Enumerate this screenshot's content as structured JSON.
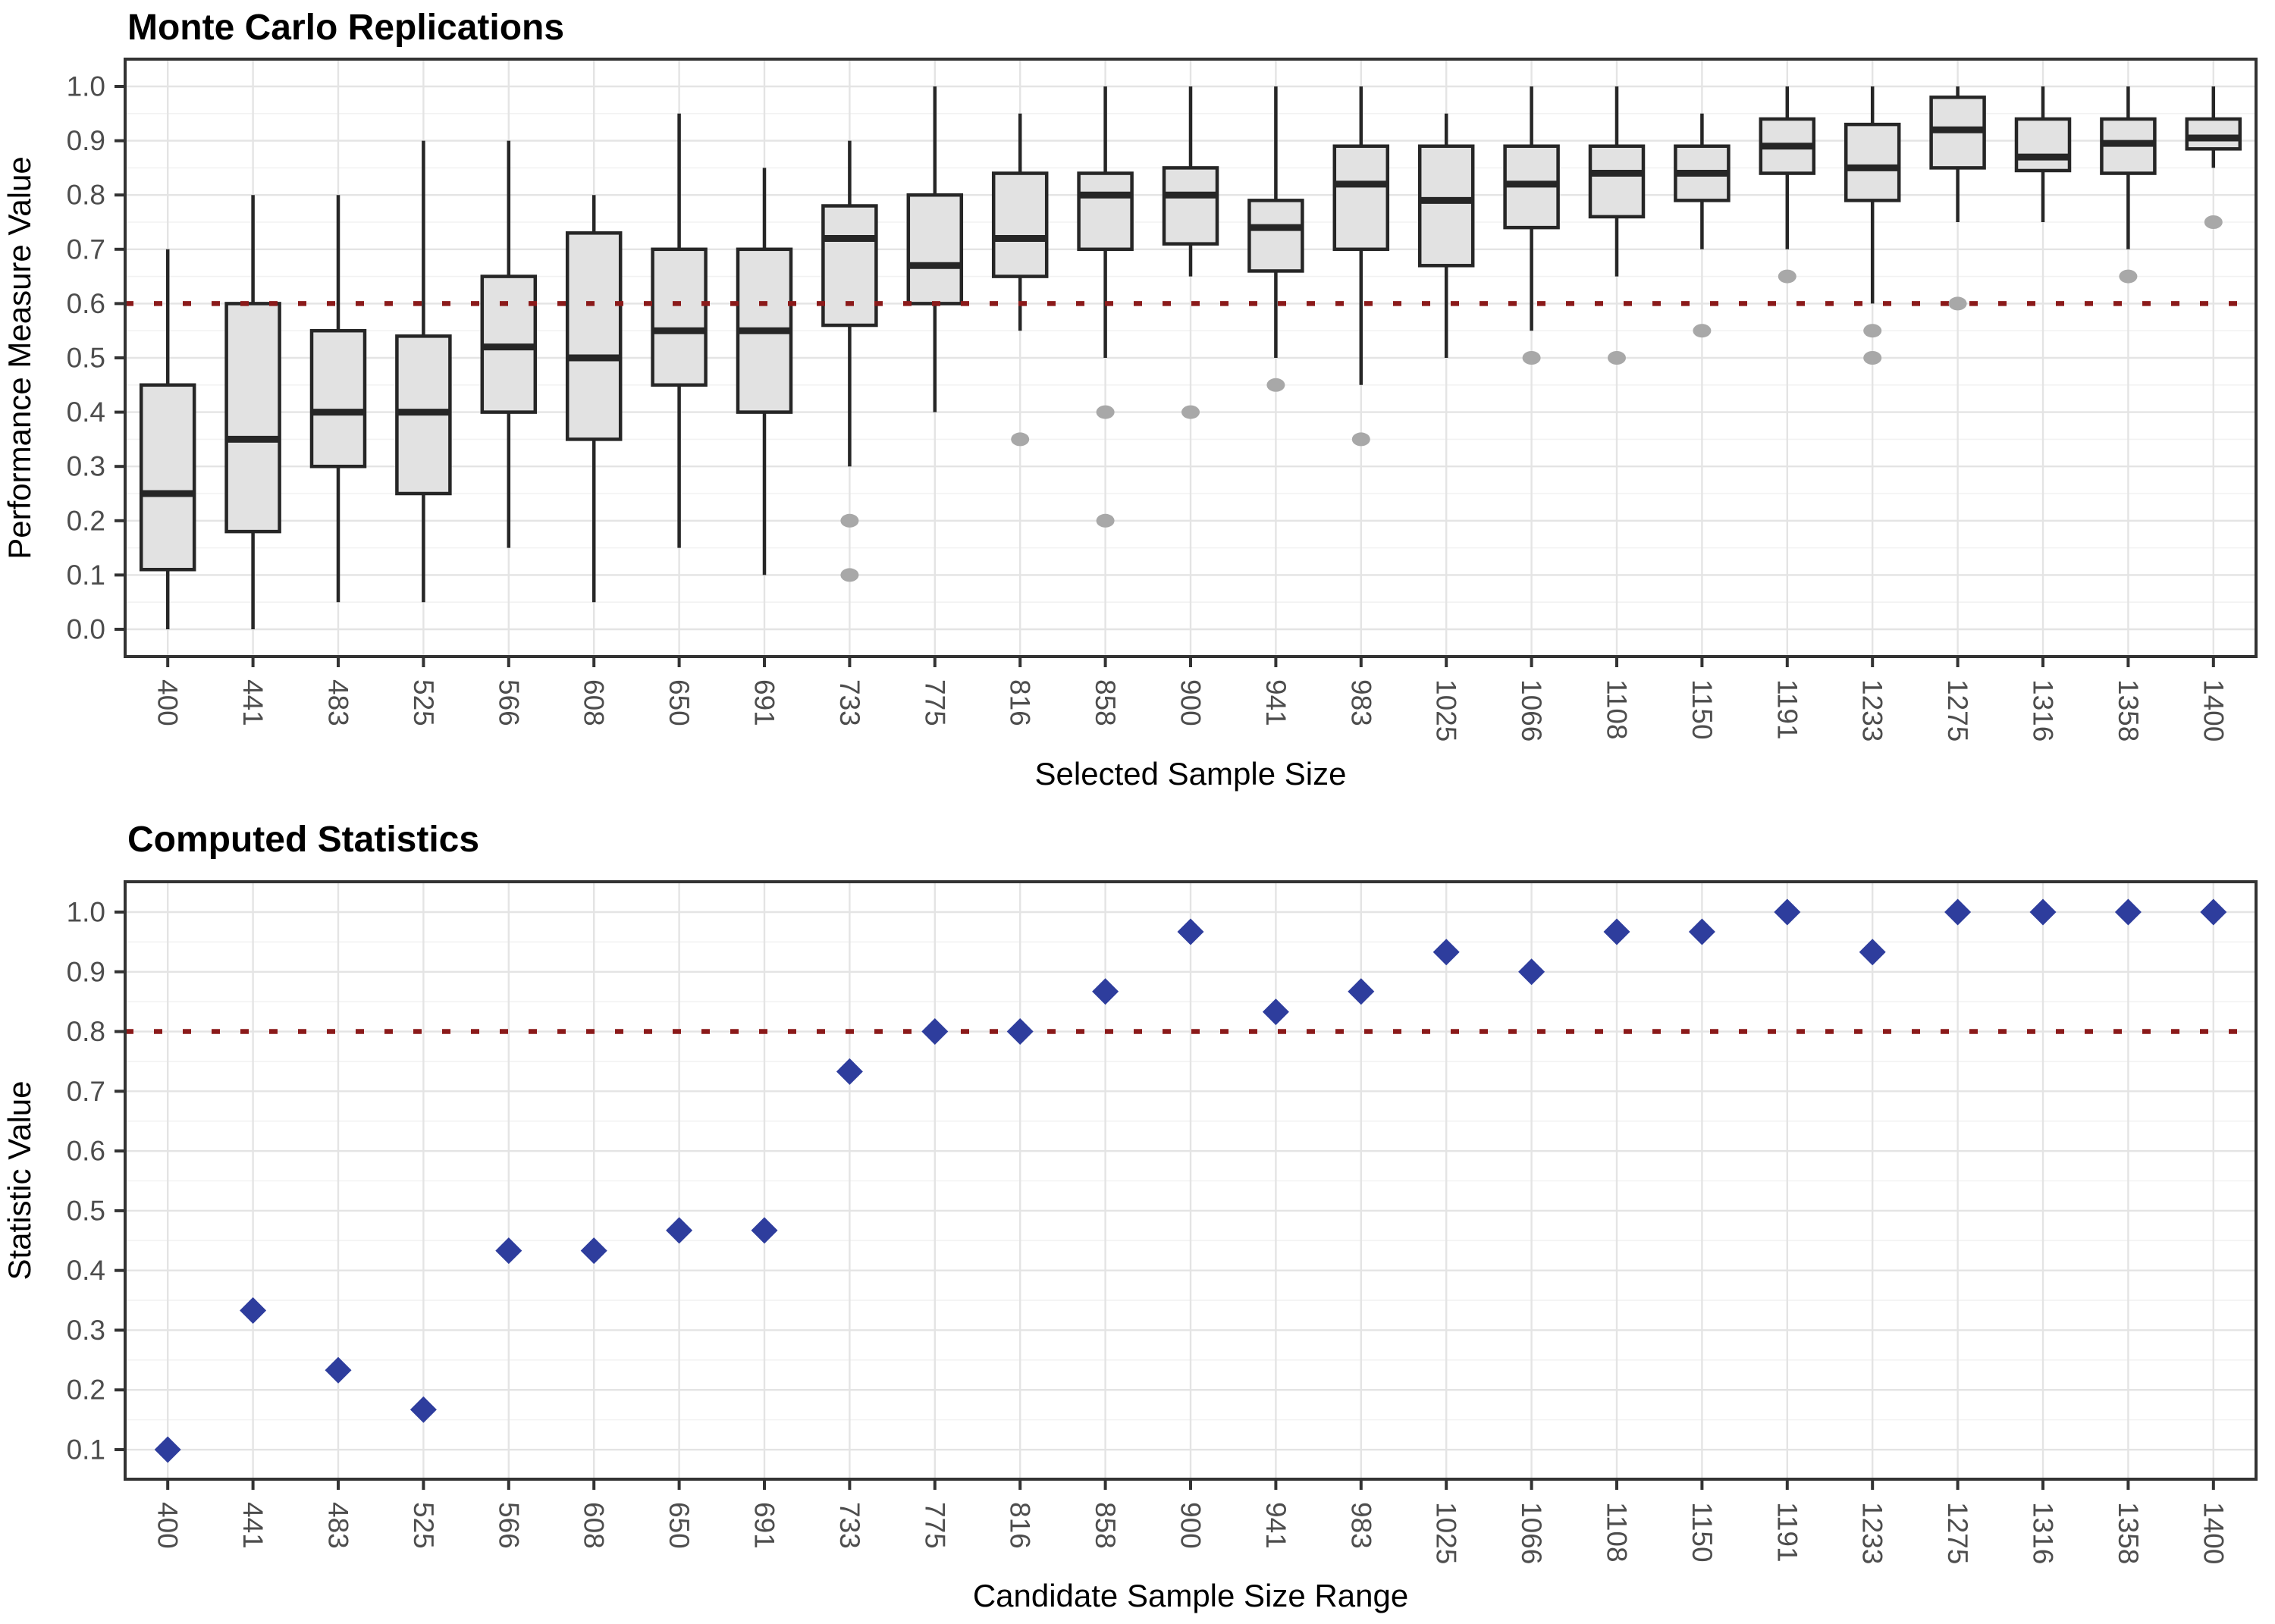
{
  "colors": {
    "box_fill": "#e2e2e2",
    "box_border": "#262626",
    "whisker": "#262626",
    "outlier": "#a8a8a8",
    "point": "#2e3d9d",
    "reference_line": "#8b1a1a",
    "grid_major": "#e4e4e4",
    "grid_minor": "#f2f2f2",
    "panel_border": "#333333",
    "tick_mark": "#333333",
    "tick_label": "#4d4d4d",
    "text": "#000000"
  },
  "chart_data": [
    {
      "type": "boxplot",
      "title": "Monte Carlo Replications",
      "xlabel": "Selected Sample Size",
      "ylabel": "Performance Measure Value",
      "legend": "none",
      "grid": "on",
      "ylim": [
        0.0,
        1.0
      ],
      "y_ticks": [
        0.0,
        0.1,
        0.2,
        0.3,
        0.4,
        0.5,
        0.6,
        0.7,
        0.8,
        0.9,
        1.0
      ],
      "y_tick_labels": [
        "0.0",
        "0.1",
        "0.2",
        "0.3",
        "0.4",
        "0.5",
        "0.6",
        "0.7",
        "0.8",
        "0.9",
        "1.0"
      ],
      "reference_line": {
        "value": 0.6,
        "style": "dotted"
      },
      "categories": [
        "400",
        "441",
        "483",
        "525",
        "566",
        "608",
        "650",
        "691",
        "733",
        "775",
        "816",
        "858",
        "900",
        "941",
        "983",
        "1025",
        "1066",
        "1108",
        "1150",
        "1191",
        "1233",
        "1275",
        "1316",
        "1358",
        "1400"
      ],
      "boxes": [
        {
          "whisker_low": 0.0,
          "q1": 0.11,
          "median": 0.25,
          "q3": 0.45,
          "whisker_high": 0.7,
          "outliers": []
        },
        {
          "whisker_low": 0.0,
          "q1": 0.18,
          "median": 0.35,
          "q3": 0.6,
          "whisker_high": 0.8,
          "outliers": []
        },
        {
          "whisker_low": 0.05,
          "q1": 0.3,
          "median": 0.4,
          "q3": 0.55,
          "whisker_high": 0.8,
          "outliers": []
        },
        {
          "whisker_low": 0.05,
          "q1": 0.25,
          "median": 0.4,
          "q3": 0.54,
          "whisker_high": 0.9,
          "outliers": []
        },
        {
          "whisker_low": 0.15,
          "q1": 0.4,
          "median": 0.52,
          "q3": 0.65,
          "whisker_high": 0.9,
          "outliers": []
        },
        {
          "whisker_low": 0.05,
          "q1": 0.35,
          "median": 0.5,
          "q3": 0.73,
          "whisker_high": 0.8,
          "outliers": []
        },
        {
          "whisker_low": 0.15,
          "q1": 0.45,
          "median": 0.55,
          "q3": 0.7,
          "whisker_high": 0.95,
          "outliers": []
        },
        {
          "whisker_low": 0.1,
          "q1": 0.4,
          "median": 0.55,
          "q3": 0.7,
          "whisker_high": 0.85,
          "outliers": []
        },
        {
          "whisker_low": 0.3,
          "q1": 0.56,
          "median": 0.72,
          "q3": 0.78,
          "whisker_high": 0.9,
          "outliers": [
            0.2,
            0.1
          ]
        },
        {
          "whisker_low": 0.4,
          "q1": 0.6,
          "median": 0.67,
          "q3": 0.8,
          "whisker_high": 1.0,
          "outliers": []
        },
        {
          "whisker_low": 0.55,
          "q1": 0.65,
          "median": 0.72,
          "q3": 0.84,
          "whisker_high": 0.95,
          "outliers": [
            0.35
          ]
        },
        {
          "whisker_low": 0.5,
          "q1": 0.7,
          "median": 0.8,
          "q3": 0.84,
          "whisker_high": 1.0,
          "outliers": [
            0.4,
            0.2
          ]
        },
        {
          "whisker_low": 0.65,
          "q1": 0.71,
          "median": 0.8,
          "q3": 0.85,
          "whisker_high": 1.0,
          "outliers": [
            0.4
          ]
        },
        {
          "whisker_low": 0.5,
          "q1": 0.66,
          "median": 0.74,
          "q3": 0.79,
          "whisker_high": 1.0,
          "outliers": [
            0.45
          ]
        },
        {
          "whisker_low": 0.45,
          "q1": 0.7,
          "median": 0.82,
          "q3": 0.89,
          "whisker_high": 1.0,
          "outliers": [
            0.35
          ]
        },
        {
          "whisker_low": 0.5,
          "q1": 0.67,
          "median": 0.79,
          "q3": 0.89,
          "whisker_high": 0.95,
          "outliers": []
        },
        {
          "whisker_low": 0.55,
          "q1": 0.74,
          "median": 0.82,
          "q3": 0.89,
          "whisker_high": 1.0,
          "outliers": [
            0.5
          ]
        },
        {
          "whisker_low": 0.65,
          "q1": 0.76,
          "median": 0.84,
          "q3": 0.89,
          "whisker_high": 1.0,
          "outliers": [
            0.5
          ]
        },
        {
          "whisker_low": 0.7,
          "q1": 0.79,
          "median": 0.84,
          "q3": 0.89,
          "whisker_high": 0.95,
          "outliers": [
            0.55
          ]
        },
        {
          "whisker_low": 0.7,
          "q1": 0.84,
          "median": 0.89,
          "q3": 0.94,
          "whisker_high": 1.0,
          "outliers": [
            0.65
          ]
        },
        {
          "whisker_low": 0.6,
          "q1": 0.79,
          "median": 0.85,
          "q3": 0.93,
          "whisker_high": 1.0,
          "outliers": [
            0.55,
            0.5
          ]
        },
        {
          "whisker_low": 0.75,
          "q1": 0.85,
          "median": 0.92,
          "q3": 0.98,
          "whisker_high": 1.0,
          "outliers": [
            0.6
          ]
        },
        {
          "whisker_low": 0.75,
          "q1": 0.845,
          "median": 0.87,
          "q3": 0.94,
          "whisker_high": 1.0,
          "outliers": []
        },
        {
          "whisker_low": 0.7,
          "q1": 0.84,
          "median": 0.895,
          "q3": 0.94,
          "whisker_high": 1.0,
          "outliers": [
            0.65
          ]
        },
        {
          "whisker_low": 0.85,
          "q1": 0.885,
          "median": 0.905,
          "q3": 0.94,
          "whisker_high": 1.0,
          "outliers": [
            0.75
          ]
        }
      ]
    },
    {
      "type": "scatter",
      "title": "Computed Statistics",
      "xlabel": "Candidate Sample Size Range",
      "ylabel": "Statistic Value",
      "legend": "none",
      "grid": "on",
      "marker": "diamond",
      "ylim": [
        0.1,
        1.0
      ],
      "y_ticks": [
        0.1,
        0.2,
        0.3,
        0.4,
        0.5,
        0.6,
        0.7,
        0.8,
        0.9,
        1.0
      ],
      "y_tick_labels": [
        "0.1",
        "0.2",
        "0.3",
        "0.4",
        "0.5",
        "0.6",
        "0.7",
        "0.8",
        "0.9",
        "1.0"
      ],
      "reference_line": {
        "value": 0.8,
        "style": "dotted"
      },
      "categories": [
        "400",
        "441",
        "483",
        "525",
        "566",
        "608",
        "650",
        "691",
        "733",
        "775",
        "816",
        "858",
        "900",
        "941",
        "983",
        "1025",
        "1066",
        "1108",
        "1150",
        "1191",
        "1233",
        "1275",
        "1316",
        "1358",
        "1400"
      ],
      "values": [
        0.1,
        0.333,
        0.233,
        0.167,
        0.433,
        0.433,
        0.467,
        0.467,
        0.733,
        0.8,
        0.8,
        0.867,
        0.967,
        0.833,
        0.867,
        0.933,
        0.9,
        0.967,
        0.967,
        1.0,
        0.933,
        1.0,
        1.0,
        1.0,
        1.0
      ]
    }
  ]
}
